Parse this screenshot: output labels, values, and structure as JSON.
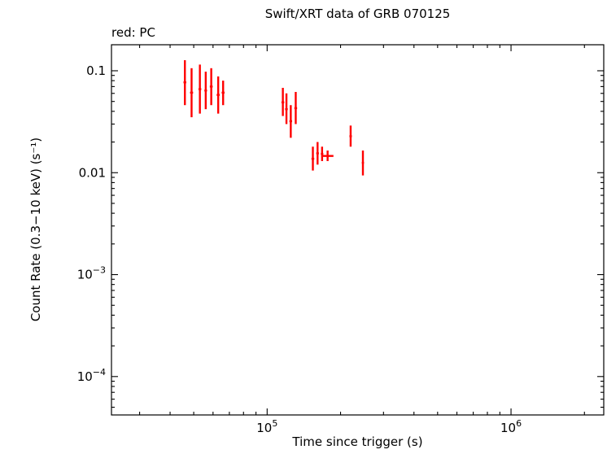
{
  "chart_data": {
    "type": "scatter",
    "title": "Swift/XRT data of GRB 070125",
    "mode_label": "red: PC",
    "xlabel": "Time since trigger (s)",
    "ylabel": "Count Rate (0.3−10 keV) (s⁻¹)",
    "x_scale": "log",
    "y_scale": "log",
    "xlim": [
      23000,
      2400000
    ],
    "ylim": [
      4.2e-05,
      0.18
    ],
    "grid": false,
    "legend": "none",
    "x_ticks": [
      {
        "v": 100000,
        "base": "10",
        "exp": "5"
      },
      {
        "v": 1000000,
        "base": "10",
        "exp": "6"
      }
    ],
    "y_ticks": [
      {
        "v": 0.1,
        "label": "0.1"
      },
      {
        "v": 0.01,
        "label": "0.01"
      },
      {
        "v": 0.001,
        "base": "10",
        "exp": "−3"
      },
      {
        "v": 0.0001,
        "base": "10",
        "exp": "−4"
      }
    ],
    "series": [
      {
        "name": "PC",
        "color": "#ff0000",
        "points": [
          {
            "t": 46000,
            "t_lo": 45400,
            "t_hi": 46600,
            "rate": 0.077,
            "rate_lo": 0.046,
            "rate_hi": 0.127
          },
          {
            "t": 49000,
            "t_lo": 48300,
            "t_hi": 49700,
            "rate": 0.061,
            "rate_lo": 0.035,
            "rate_hi": 0.106
          },
          {
            "t": 53000,
            "t_lo": 52300,
            "t_hi": 53700,
            "rate": 0.066,
            "rate_lo": 0.038,
            "rate_hi": 0.115
          },
          {
            "t": 56000,
            "t_lo": 55300,
            "t_hi": 56700,
            "rate": 0.064,
            "rate_lo": 0.042,
            "rate_hi": 0.098
          },
          {
            "t": 59000,
            "t_lo": 58200,
            "t_hi": 59800,
            "rate": 0.07,
            "rate_lo": 0.046,
            "rate_hi": 0.106
          },
          {
            "t": 63000,
            "t_lo": 62100,
            "t_hi": 63900,
            "rate": 0.058,
            "rate_lo": 0.038,
            "rate_hi": 0.088
          },
          {
            "t": 66000,
            "t_lo": 65100,
            "t_hi": 66900,
            "rate": 0.061,
            "rate_lo": 0.046,
            "rate_hi": 0.08
          },
          {
            "t": 116000,
            "t_lo": 114500,
            "t_hi": 117500,
            "rate": 0.049,
            "rate_lo": 0.036,
            "rate_hi": 0.068
          },
          {
            "t": 120000,
            "t_lo": 118500,
            "t_hi": 121500,
            "rate": 0.042,
            "rate_lo": 0.03,
            "rate_hi": 0.06
          },
          {
            "t": 125000,
            "t_lo": 123400,
            "t_hi": 126600,
            "rate": 0.032,
            "rate_lo": 0.022,
            "rate_hi": 0.046
          },
          {
            "t": 131000,
            "t_lo": 129300,
            "t_hi": 132700,
            "rate": 0.043,
            "rate_lo": 0.03,
            "rate_hi": 0.062
          },
          {
            "t": 154000,
            "t_lo": 152000,
            "t_hi": 156000,
            "rate": 0.0137,
            "rate_lo": 0.0105,
            "rate_hi": 0.018
          },
          {
            "t": 161000,
            "t_lo": 159000,
            "t_hi": 163000,
            "rate": 0.0155,
            "rate_lo": 0.012,
            "rate_hi": 0.02
          },
          {
            "t": 168000,
            "t_lo": 166000,
            "t_hi": 170000,
            "rate": 0.0153,
            "rate_lo": 0.013,
            "rate_hi": 0.018
          },
          {
            "t": 177000,
            "t_lo": 168000,
            "t_hi": 187000,
            "rate": 0.0146,
            "rate_lo": 0.013,
            "rate_hi": 0.0165
          },
          {
            "t": 220000,
            "t_lo": 217500,
            "t_hi": 222500,
            "rate": 0.0228,
            "rate_lo": 0.018,
            "rate_hi": 0.029
          },
          {
            "t": 247000,
            "t_lo": 244500,
            "t_hi": 249500,
            "rate": 0.0125,
            "rate_lo": 0.0094,
            "rate_hi": 0.0165
          }
        ]
      }
    ]
  }
}
